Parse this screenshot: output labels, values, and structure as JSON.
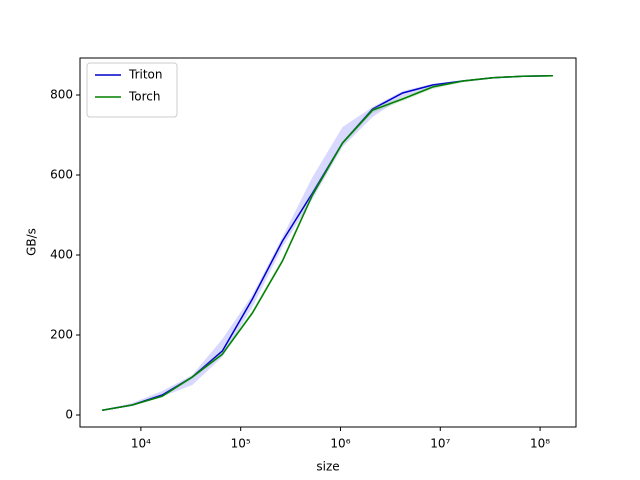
{
  "chart_data": {
    "type": "line",
    "xlabel": "size",
    "ylabel": "GB/s",
    "xscale": "log",
    "x": [
      4096,
      8192,
      16384,
      32768,
      65536,
      131072,
      262144,
      524288,
      1048576,
      2097152,
      4194304,
      8388608,
      16777216,
      33554432,
      67108864,
      134217728
    ],
    "series": [
      {
        "name": "Triton",
        "color": "#0000cc",
        "band_color": "#8080ff",
        "values": [
          12,
          25,
          50,
          95,
          160,
          290,
          435,
          555,
          680,
          765,
          805,
          825,
          835,
          843,
          847,
          848
        ],
        "lower": [
          11,
          22,
          46,
          75,
          145,
          270,
          420,
          540,
          670,
          745,
          795,
          820,
          832,
          841,
          846,
          847
        ],
        "upper": [
          13,
          30,
          60,
          100,
          190,
          300,
          445,
          595,
          720,
          770,
          810,
          828,
          837,
          845,
          849,
          850
        ]
      },
      {
        "name": "Torch",
        "color": "#008000",
        "band_color": "#80c080",
        "values": [
          12,
          25,
          47,
          95,
          152,
          255,
          385,
          550,
          680,
          762,
          790,
          820,
          835,
          843,
          847,
          848
        ],
        "lower": [
          11,
          23,
          44,
          90,
          148,
          250,
          380,
          545,
          675,
          755,
          785,
          815,
          832,
          841,
          846,
          847
        ],
        "upper": [
          13,
          27,
          50,
          98,
          158,
          262,
          392,
          560,
          685,
          768,
          795,
          824,
          837,
          845,
          849,
          850
        ]
      }
    ],
    "xlim": [
      2455,
      229000000
    ],
    "xticks": [
      {
        "value": 10000,
        "label": "10⁴"
      },
      {
        "value": 100000,
        "label": "10⁵"
      },
      {
        "value": 1000000,
        "label": "10⁶"
      },
      {
        "value": 10000000,
        "label": "10⁷"
      },
      {
        "value": 100000000,
        "label": "10⁸"
      }
    ],
    "ylim": [
      -30,
      892.5
    ],
    "yticks": [
      0,
      200,
      400,
      600,
      800
    ],
    "legend": "upper-left"
  }
}
